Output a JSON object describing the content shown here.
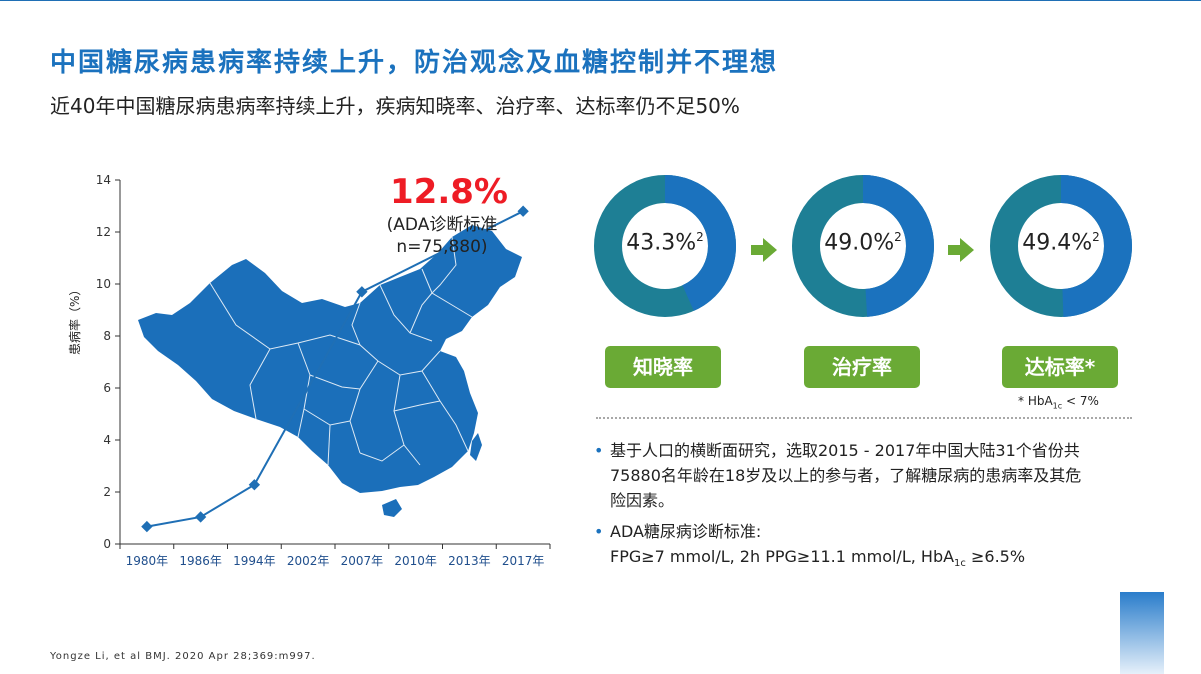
{
  "header": {
    "title": "中国糖尿病患病率持续上升，防治观念及血糖控制并不理想",
    "subtitle": "近40年中国糖尿病患病率持续上升，疾病知晓率、治疗率、达标率仍不足50%"
  },
  "chart_data": {
    "type": "line",
    "categories": [
      "1980年",
      "1986年",
      "1994年",
      "2002年",
      "2007年",
      "2010年",
      "2013年",
      "2017年"
    ],
    "series": [
      {
        "values": [
          0.67,
          1.04,
          2.28,
          null,
          9.7,
          null,
          null,
          12.8
        ]
      }
    ],
    "ylabel": "患病率（%）",
    "ylim": [
      0,
      14
    ],
    "yticks": [
      "0",
      "2",
      "4",
      "6",
      "8",
      "10",
      "12",
      "14"
    ],
    "background_image": "china-map",
    "annotation": {
      "value": "12.8%",
      "note_lines": [
        "(ADA诊断标准",
        "n=75,880)"
      ]
    },
    "colors": {
      "line": "#1f6fb5",
      "map": "#1b6fba"
    }
  },
  "rates": [
    {
      "value": "43.3%",
      "sup": "2",
      "percent": 43.3,
      "label": "知晓率"
    },
    {
      "value": "49.0%",
      "sup": "2",
      "percent": 49.0,
      "label": "治疗率"
    },
    {
      "value": "49.4%",
      "sup": "2",
      "percent": 49.4,
      "label": "达标率*"
    }
  ],
  "rates_footnote": {
    "prefix": "* HbA",
    "sub": "1c",
    "suffix": " < 7%"
  },
  "bullets": {
    "b1": [
      "基于人口的横断面研究，选取2015 - 2017年中国大陆31个省份共",
      "75880名年龄在18岁及以上的参与者，了解糖尿病的患病率及其危",
      "险因素。"
    ],
    "b2_line1": "ADA糖尿病诊断标准:",
    "b2_line2_prefix": "FPG≥7 mmol/L, 2h PPG≥11.1 mmol/L, HbA",
    "b2_line2_sub": "1c",
    "b2_line2_suffix": " ≥6.5%"
  },
  "citation": "Yongze Li, et al BMJ. 2020 Apr 28;369:m997.",
  "colors": {
    "title": "#1b72be",
    "donut_fill": "#1b72be",
    "donut_rest": "#1e7f95",
    "pill": "#6aaa35",
    "highlight": "#ee1c25"
  }
}
